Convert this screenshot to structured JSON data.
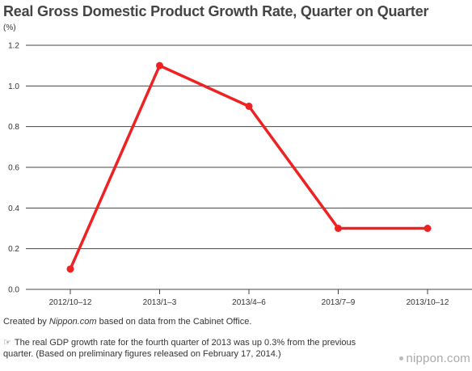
{
  "header": {
    "title": "Real Gross Domestic Product Growth Rate, Quarter on Quarter"
  },
  "footer": {
    "source_prefix": "Created by ",
    "source_site": "Nippon.com",
    "source_suffix": " based on data from the Cabinet Office.",
    "note_icon": "pointing-hand-icon",
    "note_icon_glyph": "☞",
    "note": "The real GDP growth rate for the fourth quarter of 2013 was up 0.3% from the previous quarter. (Based on preliminary figures released on February 17, 2014.)"
  },
  "logo": {
    "text": "nippon.com"
  },
  "colors": {
    "series": "#ee2222",
    "grid": "#444444",
    "text": "#333333",
    "title": "#444444",
    "logo": "#aaaaaa"
  },
  "chart_data": {
    "type": "line",
    "title": "Real Gross Domestic Product Growth Rate, Quarter on Quarter",
    "ylabel": "(%)",
    "xlabel": "",
    "categories": [
      "2012/10–12",
      "2013/1–3",
      "2013/4–6",
      "2013/7–9",
      "2013/10–12"
    ],
    "values": [
      0.1,
      1.1,
      0.9,
      0.3,
      0.3
    ],
    "ylim": [
      0.0,
      1.2
    ],
    "yticks": [
      "0.0",
      "0.2",
      "0.4",
      "0.6",
      "0.8",
      "1.0",
      "1.2"
    ],
    "grid": true,
    "legend": "none"
  }
}
